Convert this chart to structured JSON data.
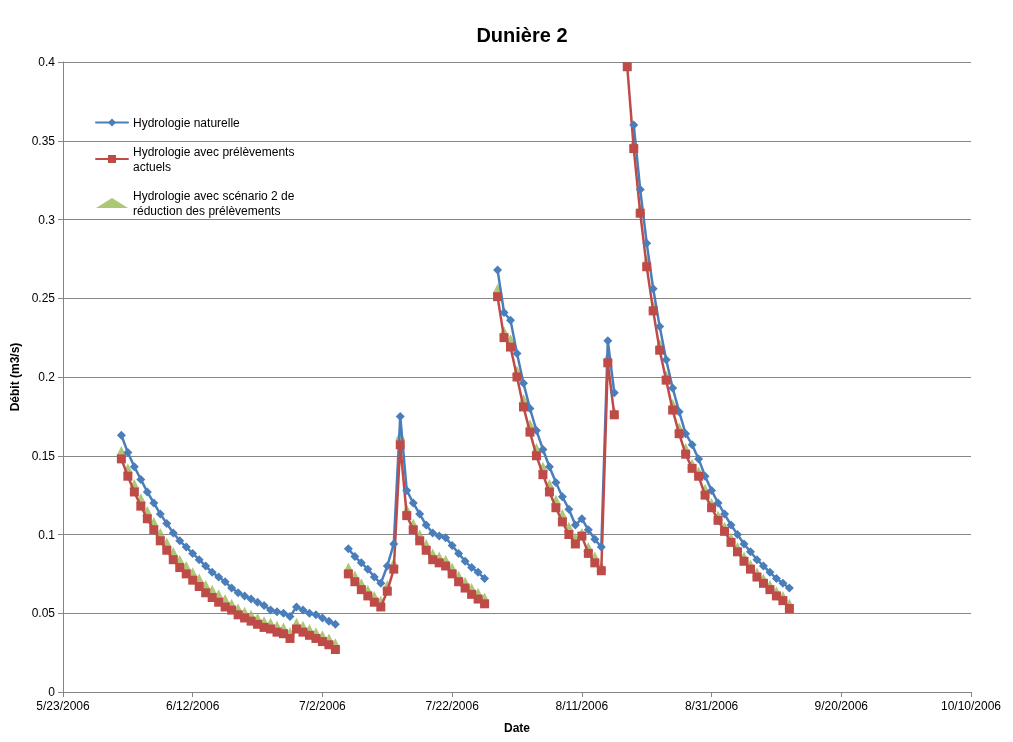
{
  "chart_data": {
    "type": "line",
    "title": "Dunière 2",
    "xlabel": "Date",
    "ylabel": "Débit (m3/s)",
    "x": [
      "2006-06-01",
      "2006-06-02",
      "2006-06-03",
      "2006-06-04",
      "2006-06-05",
      "2006-06-06",
      "2006-06-07",
      "2006-06-08",
      "2006-06-09",
      "2006-06-10",
      "2006-06-11",
      "2006-06-12",
      "2006-06-13",
      "2006-06-14",
      "2006-06-15",
      "2006-06-16",
      "2006-06-17",
      "2006-06-18",
      "2006-06-19",
      "2006-06-20",
      "2006-06-21",
      "2006-06-22",
      "2006-06-23",
      "2006-06-24",
      "2006-06-25",
      "2006-06-26",
      "2006-06-27",
      "2006-06-28",
      "2006-06-29",
      "2006-06-30",
      "2006-07-01",
      "2006-07-02",
      "2006-07-03",
      "2006-07-04",
      "2006-07-05",
      "2006-07-06",
      "2006-07-07",
      "2006-07-08",
      "2006-07-09",
      "2006-07-10",
      "2006-07-11",
      "2006-07-12",
      "2006-07-13",
      "2006-07-14",
      "2006-07-15",
      "2006-07-16",
      "2006-07-17",
      "2006-07-18",
      "2006-07-19",
      "2006-07-20",
      "2006-07-21",
      "2006-07-22",
      "2006-07-23",
      "2006-07-24",
      "2006-07-25",
      "2006-07-26",
      "2006-07-27",
      "2006-07-28",
      "2006-07-29",
      "2006-07-30",
      "2006-07-31",
      "2006-08-01",
      "2006-08-02",
      "2006-08-03",
      "2006-08-04",
      "2006-08-05",
      "2006-08-06",
      "2006-08-07",
      "2006-08-08",
      "2006-08-09",
      "2006-08-10",
      "2006-08-11",
      "2006-08-12",
      "2006-08-13",
      "2006-08-14",
      "2006-08-15",
      "2006-08-16",
      "2006-08-17",
      "2006-08-18",
      "2006-08-19",
      "2006-08-20",
      "2006-08-21",
      "2006-08-22",
      "2006-08-23",
      "2006-08-24",
      "2006-08-25",
      "2006-08-26",
      "2006-08-27",
      "2006-08-28",
      "2006-08-29",
      "2006-08-30",
      "2006-08-31",
      "2006-09-01",
      "2006-09-02",
      "2006-09-03",
      "2006-09-04",
      "2006-09-05",
      "2006-09-06",
      "2006-09-07",
      "2006-09-08",
      "2006-09-09",
      "2006-09-10",
      "2006-09-11",
      "2006-09-12"
    ],
    "series": [
      {
        "name": "Hydrologie naturelle",
        "marker": "diamond",
        "color": "#4a7ebb",
        "values": [
          0.163,
          0.152,
          0.143,
          0.135,
          0.127,
          0.12,
          0.113,
          0.107,
          0.101,
          0.096,
          0.092,
          0.088,
          0.084,
          0.08,
          0.076,
          0.073,
          0.07,
          0.066,
          0.063,
          0.061,
          0.059,
          0.057,
          0.055,
          0.052,
          0.051,
          0.05,
          0.048,
          0.054,
          0.052,
          0.05,
          0.049,
          0.047,
          0.045,
          0.043,
          null,
          0.091,
          0.086,
          0.082,
          0.078,
          0.073,
          0.069,
          0.08,
          0.094,
          0.175,
          0.128,
          0.12,
          0.113,
          0.106,
          0.101,
          0.099,
          0.098,
          0.093,
          0.088,
          0.083,
          0.079,
          0.076,
          0.072,
          null,
          0.268,
          0.241,
          0.236,
          0.215,
          0.196,
          0.18,
          0.166,
          0.154,
          0.143,
          0.133,
          0.124,
          0.116,
          0.106,
          0.11,
          0.103,
          0.097,
          0.092,
          0.223,
          0.19,
          null,
          null,
          0.36,
          0.319,
          0.285,
          0.256,
          0.232,
          0.211,
          0.193,
          0.178,
          0.164,
          0.157,
          0.148,
          0.137,
          0.128,
          0.12,
          0.113,
          0.106,
          0.1,
          0.094,
          0.089,
          0.084,
          0.08,
          0.076,
          0.072,
          0.069,
          0.066
        ]
      },
      {
        "name": "Hydrologie avec prélèvements actuels",
        "marker": "square",
        "color": "#be4b48",
        "values": [
          0.148,
          0.137,
          0.127,
          0.118,
          0.11,
          0.103,
          0.096,
          0.09,
          0.084,
          0.079,
          0.075,
          0.071,
          0.067,
          0.063,
          0.06,
          0.057,
          0.054,
          0.052,
          0.049,
          0.047,
          0.045,
          0.043,
          0.041,
          0.04,
          0.038,
          0.037,
          0.034,
          0.04,
          0.038,
          0.036,
          0.034,
          0.032,
          0.03,
          0.027,
          null,
          0.075,
          0.07,
          0.065,
          0.061,
          0.057,
          0.054,
          0.064,
          0.078,
          0.157,
          0.112,
          0.103,
          0.096,
          0.09,
          0.084,
          0.082,
          0.08,
          0.075,
          0.07,
          0.066,
          0.062,
          0.059,
          0.056,
          null,
          0.251,
          0.225,
          0.219,
          0.2,
          0.181,
          0.165,
          0.15,
          0.138,
          0.127,
          0.117,
          0.108,
          0.1,
          0.094,
          0.099,
          0.088,
          0.082,
          0.077,
          0.209,
          0.176,
          null,
          0.397,
          0.345,
          0.304,
          0.27,
          0.242,
          0.217,
          0.198,
          0.179,
          0.164,
          0.151,
          0.142,
          0.137,
          0.125,
          0.117,
          0.109,
          0.102,
          0.095,
          0.089,
          0.083,
          0.078,
          0.073,
          0.069,
          0.065,
          0.061,
          0.058,
          0.053
        ]
      },
      {
        "name": "Hydrologie avec scénario 2 de réduction des prélèvements",
        "type": "scatter",
        "marker": "triangle",
        "color": "#98b954",
        "values": [
          0.153,
          0.142,
          0.132,
          0.123,
          0.115,
          0.108,
          0.101,
          0.095,
          0.089,
          0.084,
          0.08,
          0.076,
          0.072,
          0.068,
          0.065,
          0.062,
          0.059,
          0.056,
          0.053,
          0.051,
          0.049,
          0.047,
          0.045,
          0.044,
          0.042,
          0.041,
          0.038,
          0.044,
          0.042,
          0.04,
          0.038,
          0.036,
          0.034,
          0.031,
          null,
          0.079,
          0.074,
          0.069,
          0.065,
          0.061,
          0.058,
          0.068,
          0.082,
          0.163,
          0.116,
          0.107,
          0.1,
          0.094,
          0.088,
          0.086,
          0.084,
          0.079,
          0.074,
          0.07,
          0.066,
          0.063,
          0.06,
          null,
          0.256,
          0.229,
          0.224,
          0.204,
          0.186,
          0.17,
          0.155,
          0.143,
          0.132,
          0.122,
          0.113,
          0.105,
          0.098,
          0.101,
          0.092,
          0.086,
          0.08,
          0.213,
          0.178,
          null,
          null,
          0.349,
          0.307,
          0.274,
          0.245,
          0.221,
          0.201,
          0.183,
          0.168,
          0.155,
          0.145,
          0.14,
          0.129,
          0.12,
          0.112,
          0.105,
          0.098,
          0.092,
          0.086,
          0.081,
          0.076,
          0.072,
          0.068,
          0.064,
          0.061,
          0.056
        ]
      }
    ],
    "xlim": [
      "2006-05-23",
      "2006-10-10"
    ],
    "xticks": [
      {
        "value": "2006-05-23",
        "label": "5/23/2006"
      },
      {
        "value": "2006-06-12",
        "label": "6/12/2006"
      },
      {
        "value": "2006-07-02",
        "label": "7/2/2006"
      },
      {
        "value": "2006-07-22",
        "label": "7/22/2006"
      },
      {
        "value": "2006-08-11",
        "label": "8/11/2006"
      },
      {
        "value": "2006-08-31",
        "label": "8/31/2006"
      },
      {
        "value": "2006-09-20",
        "label": "9/20/2006"
      },
      {
        "value": "2006-10-10",
        "label": "10/10/2006"
      }
    ],
    "ylim": [
      0,
      0.4
    ],
    "yticks": [
      0,
      0.05,
      0.1,
      0.15,
      0.2,
      0.25,
      0.3,
      0.35,
      0.4
    ],
    "grid": "y",
    "legend": "top left",
    "line_style": "solid"
  }
}
